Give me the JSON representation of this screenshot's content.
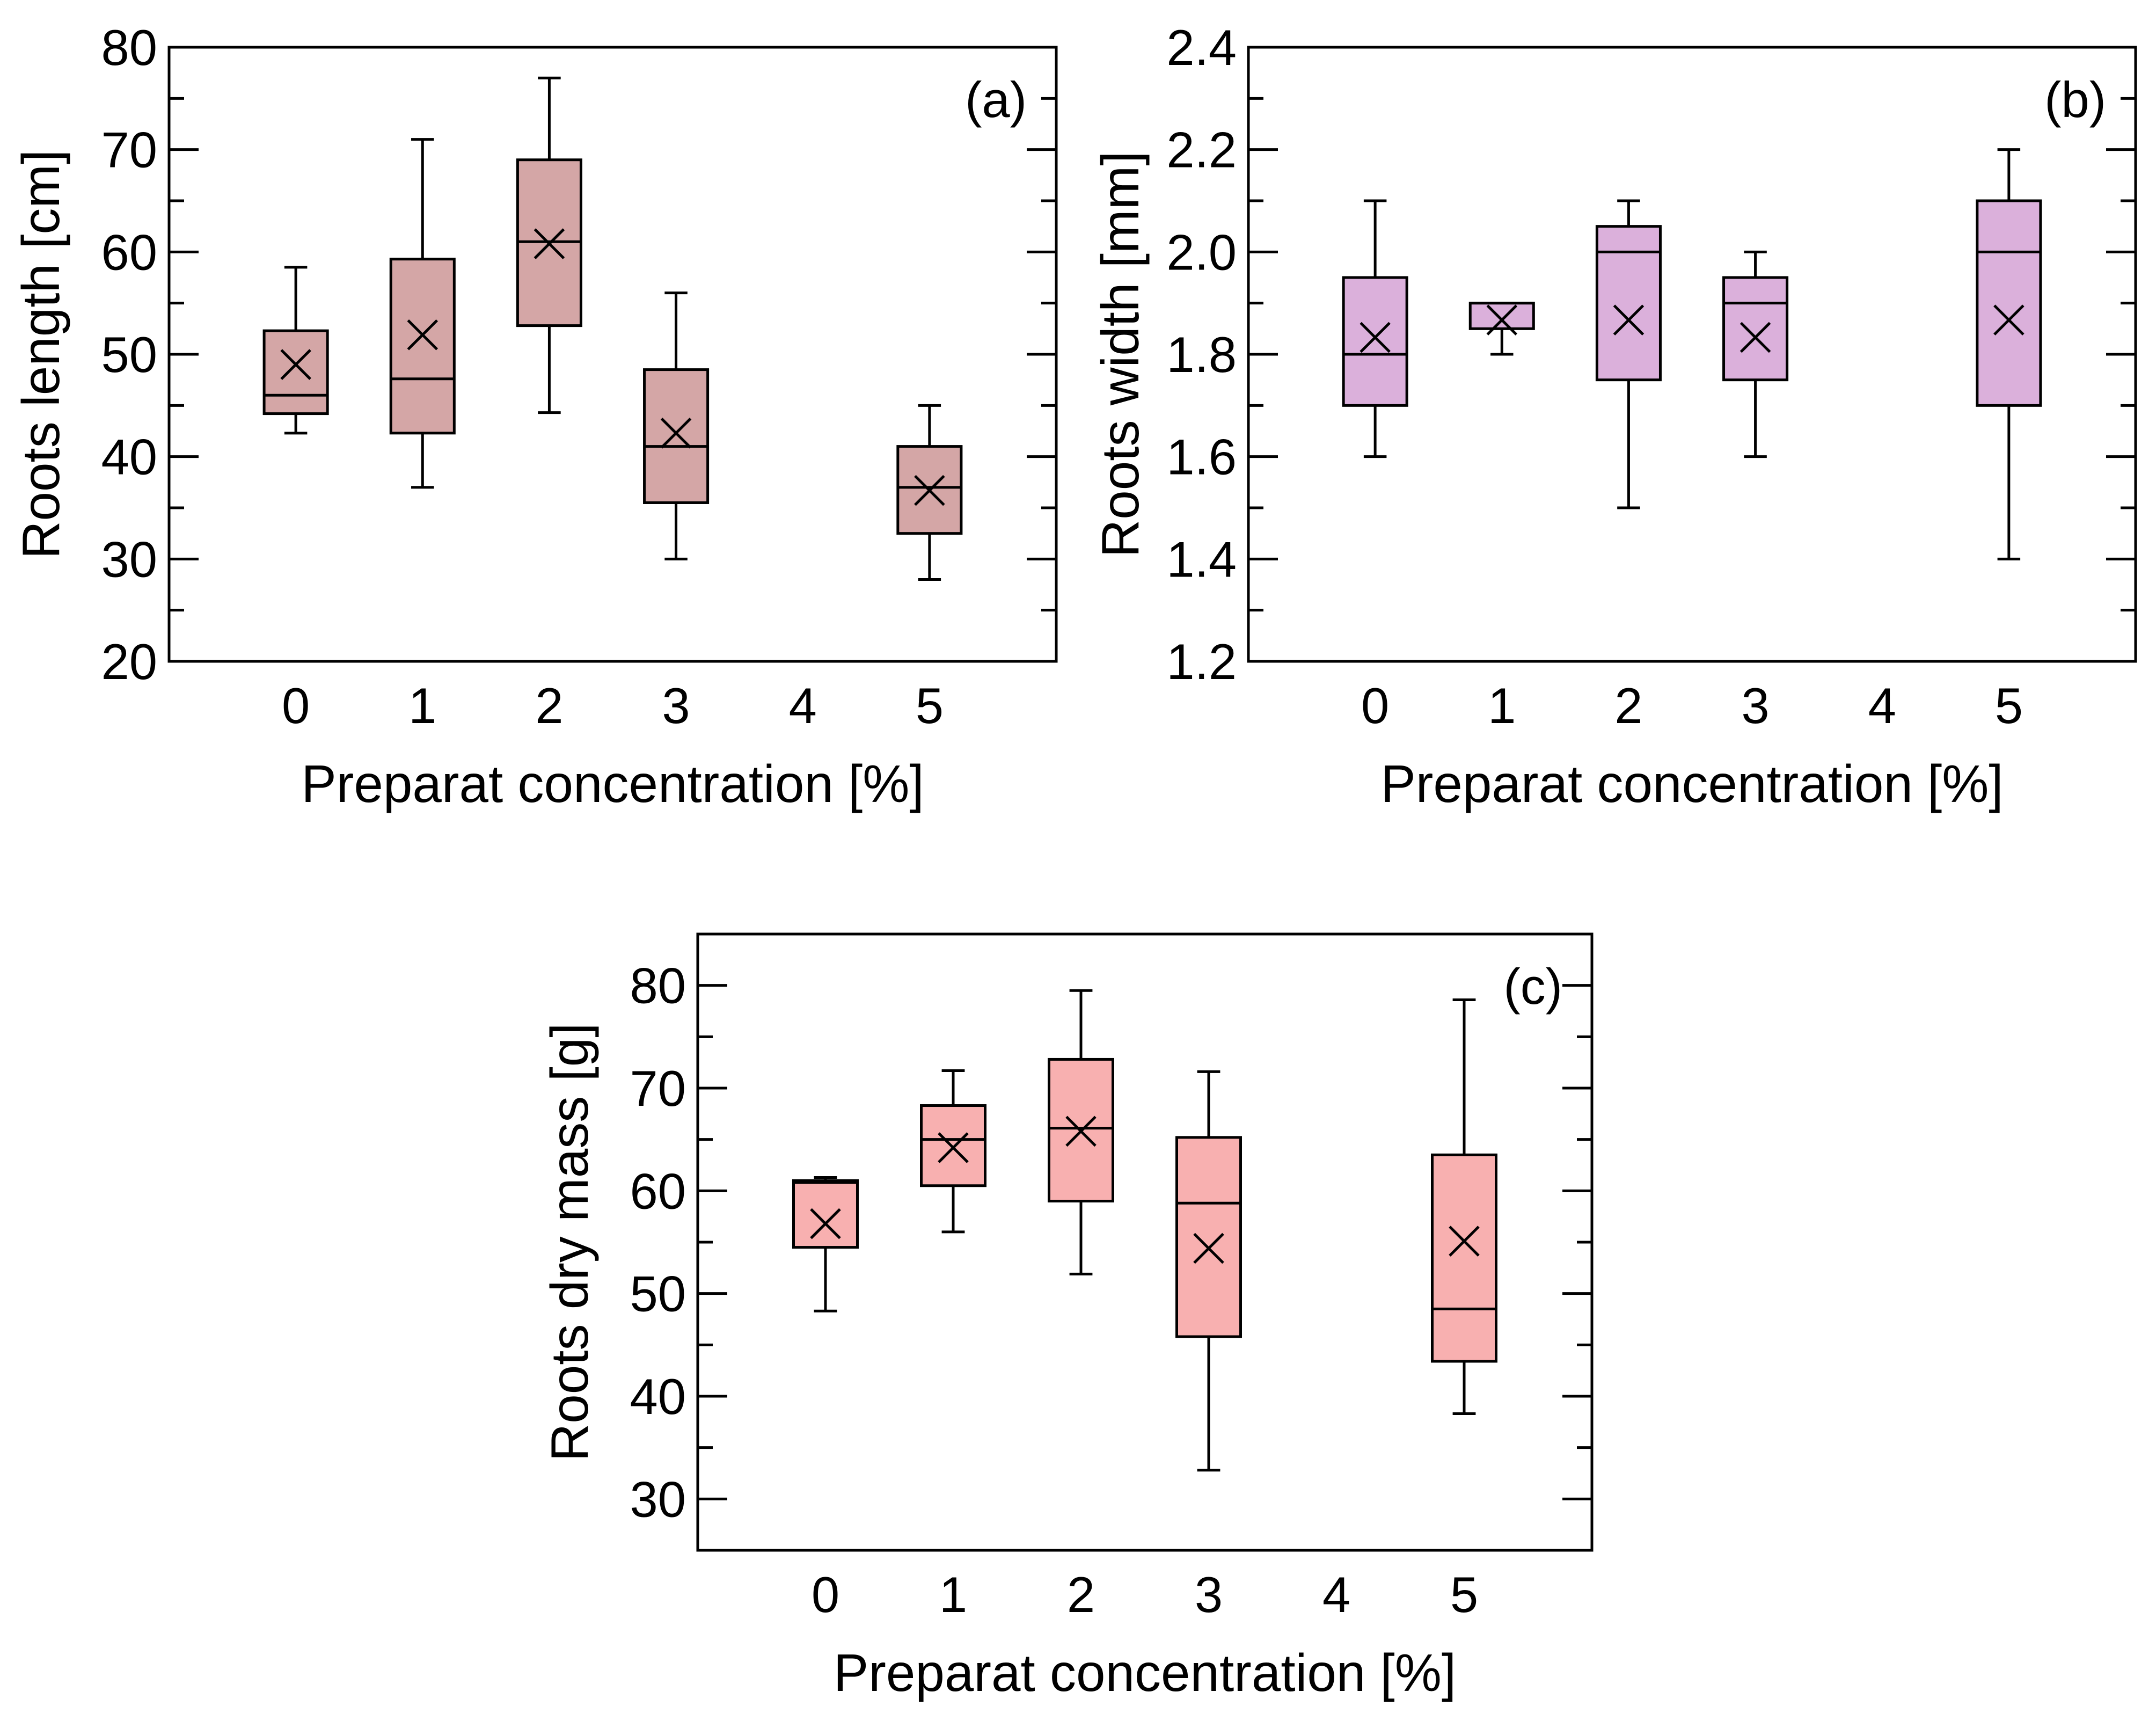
{
  "chart_data": [
    {
      "type": "box",
      "panel_label": "(a)",
      "xlabel": "Preparat concentration [%]",
      "ylabel": "Roots length [cm]",
      "ylim": [
        20,
        80
      ],
      "yticks": [
        20,
        30,
        40,
        50,
        60,
        70,
        80
      ],
      "xlim": [
        -1,
        6
      ],
      "xticks": [
        0,
        1,
        2,
        3,
        4,
        5
      ],
      "color": "#d4a6a6",
      "boxes": [
        {
          "x": 0,
          "min": 42.3,
          "q1": 44.2,
          "median": 46.0,
          "q3": 52.3,
          "max": 58.5,
          "mean": 49.0
        },
        {
          "x": 1,
          "min": 37.0,
          "q1": 42.3,
          "median": 47.6,
          "q3": 59.3,
          "max": 71.0,
          "mean": 51.9
        },
        {
          "x": 2,
          "min": 44.3,
          "q1": 52.8,
          "median": 61.0,
          "q3": 69.0,
          "max": 77.0,
          "mean": 60.8
        },
        {
          "x": 3,
          "min": 30.0,
          "q1": 35.5,
          "median": 41.0,
          "q3": 48.5,
          "max": 56.0,
          "mean": 42.3
        },
        {
          "x": 5,
          "min": 28.0,
          "q1": 32.5,
          "median": 37.0,
          "q3": 41.0,
          "max": 45.0,
          "mean": 36.7
        }
      ]
    },
    {
      "type": "box",
      "panel_label": "(b)",
      "xlabel": "Preparat concentration [%]",
      "ylabel": "Roots width [mm]",
      "ylim": [
        1.2,
        2.4
      ],
      "yticks": [
        "1.2",
        "1.4",
        "1.6",
        "1.8",
        "2.0",
        "2.2",
        "2.4"
      ],
      "xlim": [
        -1,
        6
      ],
      "xticks": [
        0,
        1,
        2,
        3,
        4,
        5
      ],
      "color": "#dbb0db",
      "boxes": [
        {
          "x": 0,
          "min": 1.6,
          "q1": 1.7,
          "median": 1.8,
          "q3": 1.95,
          "max": 2.1,
          "mean": 1.833
        },
        {
          "x": 1,
          "min": 1.8,
          "q1": 1.85,
          "median": 1.9,
          "q3": 1.9,
          "max": 1.9,
          "mean": 1.867
        },
        {
          "x": 2,
          "min": 1.5,
          "q1": 1.75,
          "median": 2.0,
          "q3": 2.05,
          "max": 2.1,
          "mean": 1.867
        },
        {
          "x": 3,
          "min": 1.6,
          "q1": 1.75,
          "median": 1.9,
          "q3": 1.95,
          "max": 2.0,
          "mean": 1.833
        },
        {
          "x": 5,
          "min": 1.4,
          "q1": 1.7,
          "median": 2.0,
          "q3": 2.1,
          "max": 2.2,
          "mean": 1.867
        }
      ]
    },
    {
      "type": "box",
      "panel_label": "(c)",
      "xlabel": "Preparat concentration [%]",
      "ylabel": "Roots dry mass [g]",
      "ylim": [
        25,
        85
      ],
      "yticks": [
        30,
        40,
        50,
        60,
        70,
        80
      ],
      "xlim": [
        -1,
        6
      ],
      "xticks": [
        0,
        1,
        2,
        3,
        4,
        5
      ],
      "color": "#f8b0b0",
      "boxes": [
        {
          "x": 0,
          "min": 48.3,
          "q1": 54.5,
          "median": 60.8,
          "q3": 61.0,
          "max": 61.3,
          "mean": 56.8
        },
        {
          "x": 1,
          "min": 56.0,
          "q1": 60.5,
          "median": 65.0,
          "q3": 68.3,
          "max": 71.7,
          "mean": 64.2
        },
        {
          "x": 2,
          "min": 51.9,
          "q1": 59.0,
          "median": 66.1,
          "q3": 72.8,
          "max": 79.5,
          "mean": 65.8
        },
        {
          "x": 3,
          "min": 32.8,
          "q1": 45.8,
          "median": 58.8,
          "q3": 65.2,
          "max": 71.6,
          "mean": 54.4
        },
        {
          "x": 5,
          "min": 38.3,
          "q1": 43.4,
          "median": 48.5,
          "q3": 63.5,
          "max": 78.6,
          "mean": 55.1
        }
      ]
    }
  ]
}
